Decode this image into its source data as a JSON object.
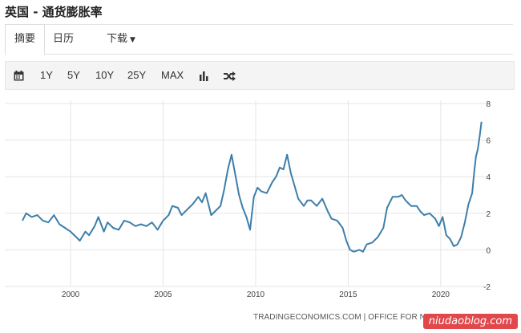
{
  "page": {
    "title": "英国 - 通货膨胀率",
    "tabs": [
      {
        "label": "摘要",
        "active": true
      },
      {
        "label": "日历",
        "active": false
      },
      {
        "label": "下载",
        "active": false,
        "dropdown": true
      }
    ]
  },
  "toolbar": {
    "icons": [
      "calendar-icon",
      "bar-chart-icon",
      "shuffle-icon"
    ],
    "ranges": [
      "1Y",
      "5Y",
      "10Y",
      "25Y",
      "MAX"
    ]
  },
  "colors": {
    "line": "#3d7eaa",
    "grid": "#e5e5e5",
    "watermark": "#e1484c"
  },
  "credit": "TRADINGECONOMICS.COM | OFFICE FOR NATIONAL STATISTICS",
  "watermark": "niudaoblog.com",
  "chart_data": {
    "type": "line",
    "title": "",
    "xlabel": "",
    "ylabel": "",
    "x_ticks": [
      "2000",
      "2005",
      "2010",
      "2015",
      "2020"
    ],
    "y_ticks": [
      "8",
      "6",
      "4",
      "2",
      "0",
      "-2"
    ],
    "xlim": [
      1997.4,
      2022.3
    ],
    "ylim": [
      -2,
      8
    ],
    "y_axis_position": "right",
    "grid": "horizontal",
    "series": [
      {
        "name": "",
        "points": [
          [
            1997.4,
            1.6
          ],
          [
            1997.6,
            2.0
          ],
          [
            1997.9,
            1.8
          ],
          [
            1998.2,
            1.9
          ],
          [
            1998.5,
            1.6
          ],
          [
            1998.8,
            1.5
          ],
          [
            1999.1,
            1.9
          ],
          [
            1999.4,
            1.4
          ],
          [
            1999.7,
            1.2
          ],
          [
            2000.0,
            1.0
          ],
          [
            2000.3,
            0.7
          ],
          [
            2000.5,
            0.5
          ],
          [
            2000.8,
            1.0
          ],
          [
            2001.0,
            0.8
          ],
          [
            2001.3,
            1.3
          ],
          [
            2001.5,
            1.8
          ],
          [
            2001.8,
            1.0
          ],
          [
            2002.0,
            1.5
          ],
          [
            2002.3,
            1.2
          ],
          [
            2002.6,
            1.1
          ],
          [
            2002.9,
            1.6
          ],
          [
            2003.2,
            1.5
          ],
          [
            2003.5,
            1.3
          ],
          [
            2003.8,
            1.4
          ],
          [
            2004.1,
            1.3
          ],
          [
            2004.4,
            1.5
          ],
          [
            2004.7,
            1.1
          ],
          [
            2005.0,
            1.6
          ],
          [
            2005.3,
            1.9
          ],
          [
            2005.5,
            2.4
          ],
          [
            2005.8,
            2.3
          ],
          [
            2006.0,
            1.9
          ],
          [
            2006.3,
            2.2
          ],
          [
            2006.6,
            2.5
          ],
          [
            2006.9,
            2.9
          ],
          [
            2007.1,
            2.6
          ],
          [
            2007.3,
            3.1
          ],
          [
            2007.6,
            1.9
          ],
          [
            2007.8,
            2.1
          ],
          [
            2008.1,
            2.4
          ],
          [
            2008.3,
            3.3
          ],
          [
            2008.5,
            4.4
          ],
          [
            2008.7,
            5.2
          ],
          [
            2008.9,
            4.1
          ],
          [
            2009.1,
            3.0
          ],
          [
            2009.3,
            2.3
          ],
          [
            2009.5,
            1.8
          ],
          [
            2009.7,
            1.1
          ],
          [
            2009.9,
            2.9
          ],
          [
            2010.1,
            3.4
          ],
          [
            2010.3,
            3.2
          ],
          [
            2010.6,
            3.1
          ],
          [
            2010.9,
            3.7
          ],
          [
            2011.1,
            4.0
          ],
          [
            2011.3,
            4.5
          ],
          [
            2011.5,
            4.4
          ],
          [
            2011.7,
            5.2
          ],
          [
            2011.9,
            4.2
          ],
          [
            2012.1,
            3.5
          ],
          [
            2012.3,
            2.8
          ],
          [
            2012.6,
            2.4
          ],
          [
            2012.8,
            2.7
          ],
          [
            2013.0,
            2.7
          ],
          [
            2013.3,
            2.4
          ],
          [
            2013.6,
            2.8
          ],
          [
            2013.9,
            2.1
          ],
          [
            2014.1,
            1.7
          ],
          [
            2014.4,
            1.6
          ],
          [
            2014.7,
            1.2
          ],
          [
            2014.9,
            0.5
          ],
          [
            2015.1,
            0.0
          ],
          [
            2015.3,
            -0.1
          ],
          [
            2015.6,
            0.0
          ],
          [
            2015.8,
            -0.1
          ],
          [
            2016.0,
            0.3
          ],
          [
            2016.3,
            0.4
          ],
          [
            2016.6,
            0.7
          ],
          [
            2016.9,
            1.2
          ],
          [
            2017.1,
            2.3
          ],
          [
            2017.4,
            2.9
          ],
          [
            2017.7,
            2.9
          ],
          [
            2017.9,
            3.0
          ],
          [
            2018.1,
            2.7
          ],
          [
            2018.4,
            2.4
          ],
          [
            2018.7,
            2.4
          ],
          [
            2018.9,
            2.1
          ],
          [
            2019.1,
            1.9
          ],
          [
            2019.4,
            2.0
          ],
          [
            2019.7,
            1.7
          ],
          [
            2019.9,
            1.3
          ],
          [
            2020.1,
            1.8
          ],
          [
            2020.3,
            0.8
          ],
          [
            2020.5,
            0.6
          ],
          [
            2020.7,
            0.2
          ],
          [
            2020.9,
            0.3
          ],
          [
            2021.1,
            0.7
          ],
          [
            2021.3,
            1.5
          ],
          [
            2021.5,
            2.5
          ],
          [
            2021.7,
            3.1
          ],
          [
            2021.8,
            4.2
          ],
          [
            2021.9,
            5.1
          ],
          [
            2022.0,
            5.5
          ],
          [
            2022.1,
            6.2
          ],
          [
            2022.2,
            7.0
          ]
        ]
      }
    ]
  }
}
